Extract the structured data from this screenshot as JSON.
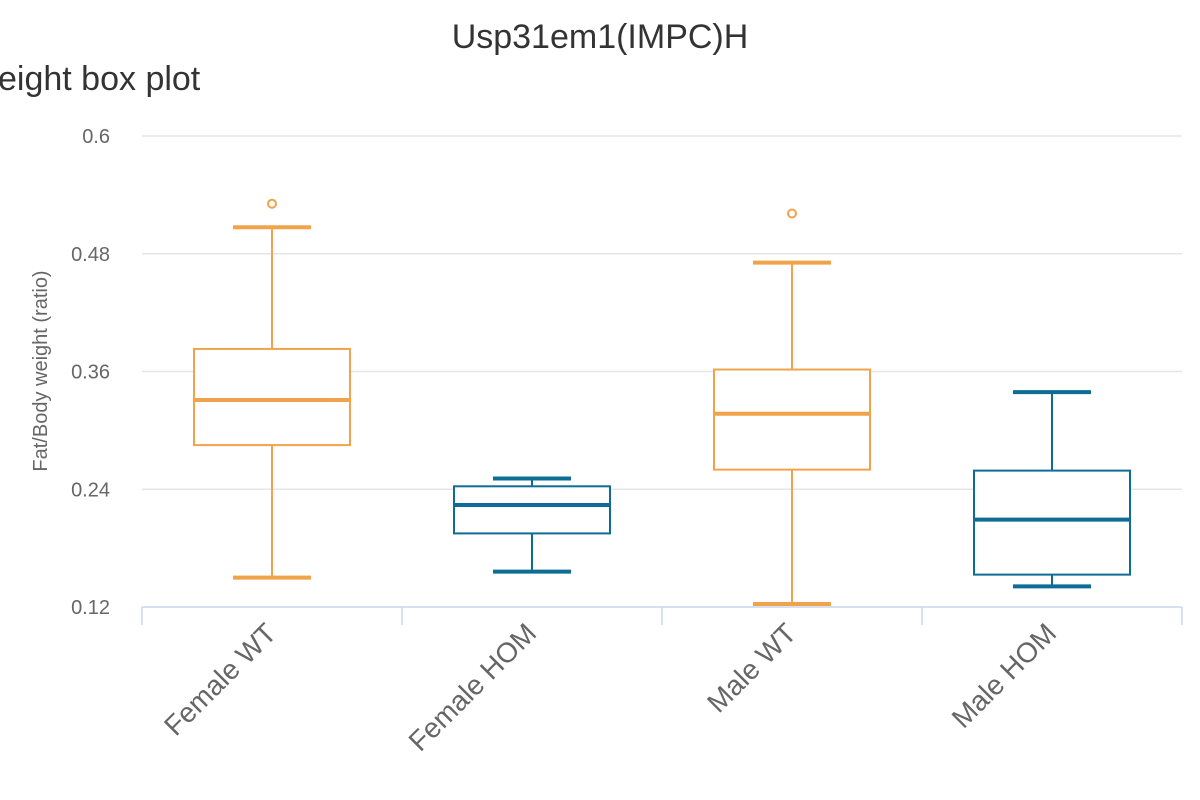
{
  "chart_data": {
    "type": "box",
    "title": "Usp31em1(IMPC)H",
    "subtitle": "eight box plot",
    "ylabel": "Fat/Body weight (ratio)",
    "xlabel": "",
    "ylim": [
      0.12,
      0.6
    ],
    "yticks": [
      "0.12",
      "0.24",
      "0.36",
      "0.48",
      "0.6"
    ],
    "ytick_values": [
      0.12,
      0.24,
      0.36,
      0.48,
      0.6
    ],
    "grid": true,
    "categories": [
      "Female WT",
      "Female HOM",
      "Male WT",
      "Male HOM"
    ],
    "boxes": [
      {
        "category": "Female WT",
        "min": 0.15,
        "q1": 0.285,
        "median": 0.331,
        "q3": 0.383,
        "max": 0.507,
        "outliers": [
          0.531
        ],
        "color": "#f0a34a"
      },
      {
        "category": "Female HOM",
        "min": 0.156,
        "q1": 0.195,
        "median": 0.224,
        "q3": 0.243,
        "max": 0.251,
        "outliers": [],
        "color": "#0e6d96"
      },
      {
        "category": "Male WT",
        "min": 0.123,
        "q1": 0.26,
        "median": 0.317,
        "q3": 0.362,
        "max": 0.471,
        "outliers": [
          0.521
        ],
        "color": "#f0a34a"
      },
      {
        "category": "Male HOM",
        "min": 0.141,
        "q1": 0.153,
        "median": 0.209,
        "q3": 0.259,
        "max": 0.339,
        "outliers": [],
        "color": "#0e6d96"
      }
    ]
  }
}
